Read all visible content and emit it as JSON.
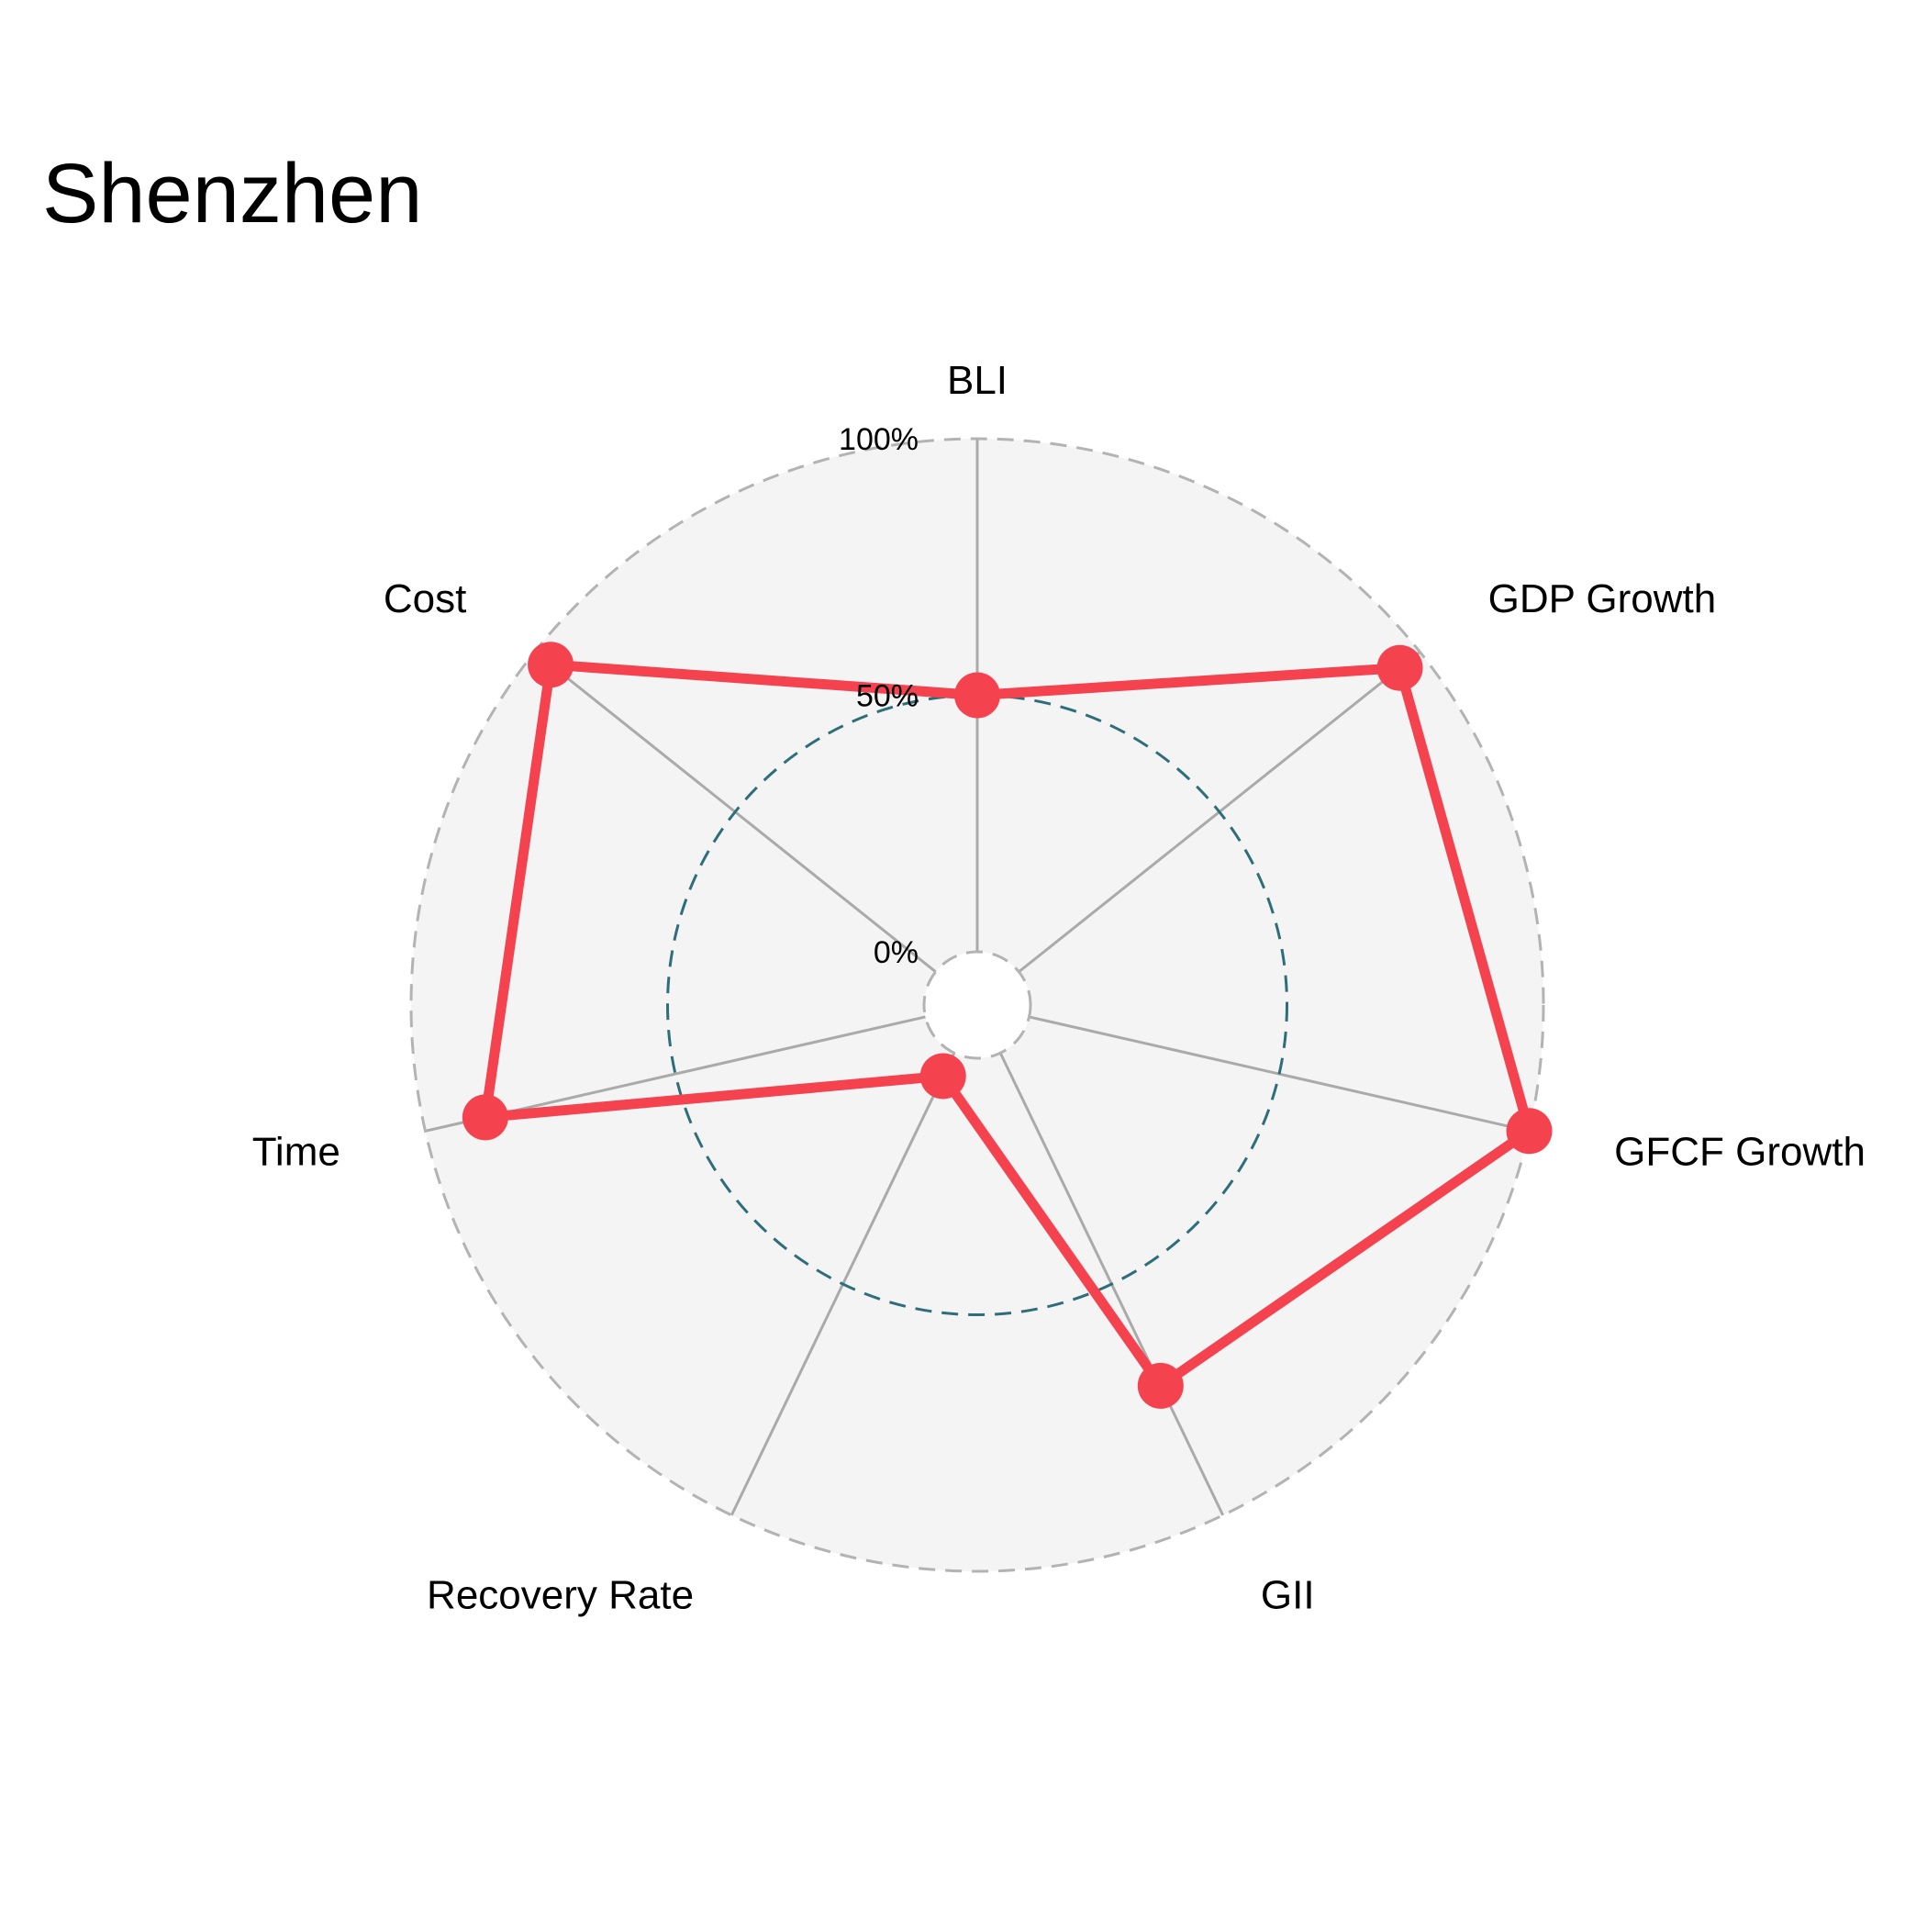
{
  "chart_data": {
    "type": "radar",
    "title": "Shenzhen",
    "axes": [
      "BLI",
      "GDP Growth",
      "GFCF Growth",
      "GII",
      "Recovery Rate",
      "Time",
      "Cost"
    ],
    "radial_ticks": [
      {
        "value": 0,
        "label": "0%"
      },
      {
        "value": 50,
        "label": "50%"
      },
      {
        "value": 100,
        "label": "100%"
      }
    ],
    "rlim": [
      0,
      100
    ],
    "series": [
      {
        "values": [
          50,
          95,
          100,
          72,
          5,
          88,
          96
        ]
      }
    ],
    "colors": {
      "series": "#F5424F",
      "background": "#F4F4F4",
      "outer_ring": "#B3B3B3",
      "mid_ring": "#2E6E7A",
      "spokes": "#AAAAAA"
    }
  }
}
